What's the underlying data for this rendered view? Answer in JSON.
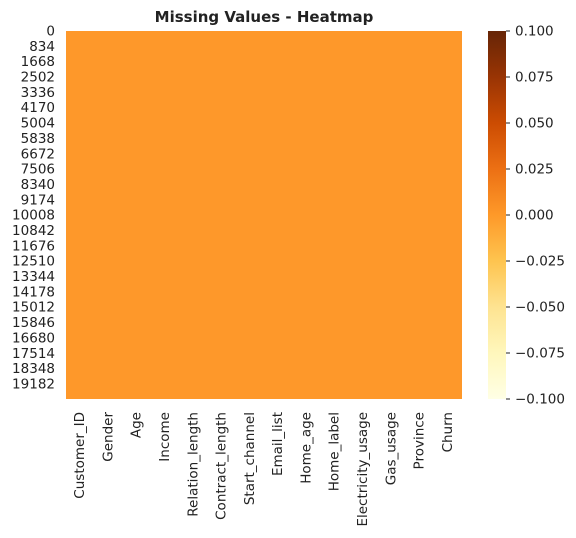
{
  "chart_data": {
    "type": "heatmap",
    "title": "Missing Values - Heatmap",
    "xlabel": "",
    "ylabel": "",
    "columns": [
      "Customer_ID",
      "Gender",
      "Age",
      "Income",
      "Relation_length",
      "Contract_length",
      "Start_channel",
      "Email_list",
      "Home_age",
      "Home_label",
      "Electricity_usage",
      "Gas_usage",
      "Province",
      "Churn"
    ],
    "row_tick_labels": [
      "0",
      "834",
      "1668",
      "2502",
      "3336",
      "4170",
      "5004",
      "5838",
      "6672",
      "7506",
      "8340",
      "9174",
      "10008",
      "10842",
      "11676",
      "12510",
      "13344",
      "14178",
      "15012",
      "15846",
      "16680",
      "17514",
      "18348",
      "19182"
    ],
    "row_count": 20000,
    "cell_value": 0.0,
    "cell_color": "#fe982a",
    "colorbar": {
      "min": -0.1,
      "max": 0.1,
      "ticks": [
        "0.100",
        "0.075",
        "0.050",
        "0.025",
        "0.000",
        "−0.025",
        "−0.050",
        "−0.075",
        "−0.100"
      ],
      "colormap": "YlOrBr",
      "stops": [
        "#ffffe5",
        "#fff7bc",
        "#fee391",
        "#fec44f",
        "#fe9929",
        "#ec7014",
        "#cc4c02",
        "#993404",
        "#662506"
      ]
    },
    "grid": false
  }
}
